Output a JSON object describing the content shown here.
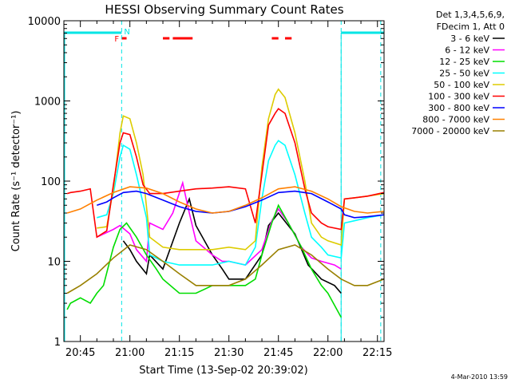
{
  "chart_data": {
    "type": "line",
    "title": "HESSI Observing Summary Count Rates",
    "xlabel": "Start Time (13-Sep-02 20:39:02)",
    "ylabel": "Count Rate (s⁻¹ detector⁻¹)",
    "y_scale": "log",
    "ylim": [
      1,
      10000
    ],
    "xlim_minutes": [
      40.0,
      137.0
    ],
    "x_ticks": [
      "20:45",
      "21:00",
      "21:15",
      "21:30",
      "21:45",
      "22:00",
      "22:15"
    ],
    "y_ticks": [
      "1",
      "10",
      "100",
      "1000",
      "10000"
    ],
    "legend_header": [
      "Det 1,3,4,5,6,9,",
      "FDecim 1, Att 0"
    ],
    "legend_placement": "right",
    "date_stamp": "4-Mar-2010 13:59",
    "flags": {
      "night_label": "N",
      "flare_label": "F",
      "night_color": "#00e5e5",
      "flare_color": "#ff0000",
      "night_intervals": [
        [
          40,
          57.5
        ],
        [
          124,
          137
        ]
      ],
      "flare_intervals": [
        [
          57.5,
          59
        ],
        [
          70,
          72
        ],
        [
          73,
          79
        ],
        [
          103,
          105
        ],
        [
          107,
          109
        ]
      ],
      "dashed_times": [
        57.5,
        124,
        136
      ]
    },
    "series": [
      {
        "name": "3 - 6 keV",
        "color": "#000000",
        "x": [
          41,
          45,
          50,
          55,
          58,
          60,
          62,
          65,
          66,
          70,
          75,
          78,
          80,
          85,
          88,
          90,
          95,
          100,
          102,
          105,
          110,
          114,
          118,
          122,
          124,
          126,
          130,
          137
        ],
        "y": [
          null,
          null,
          null,
          null,
          18,
          14,
          10,
          7,
          12,
          8,
          30,
          60,
          28,
          12,
          8,
          6,
          6,
          12,
          28,
          40,
          22,
          9,
          6,
          5,
          4,
          null,
          null,
          null
        ]
      },
      {
        "name": "6 - 12 keV",
        "color": "#ff00ff",
        "x": [
          41,
          45,
          50,
          55,
          57,
          60,
          62,
          65,
          66,
          70,
          73,
          76,
          78,
          80,
          85,
          88,
          90,
          95,
          100,
          103,
          105,
          108,
          112,
          115,
          118,
          122,
          124,
          126,
          130,
          137
        ],
        "y": [
          null,
          null,
          20,
          25,
          28,
          22,
          14,
          10,
          30,
          25,
          40,
          95,
          40,
          18,
          12,
          10,
          10,
          9,
          14,
          32,
          45,
          30,
          15,
          11,
          10,
          9,
          8,
          null,
          null,
          null
        ]
      },
      {
        "name": "12 - 25 keV",
        "color": "#00dd00",
        "x": [
          41,
          42,
          45,
          48,
          50,
          52,
          55,
          57,
          59,
          62,
          65,
          68,
          70,
          75,
          80,
          85,
          90,
          95,
          98,
          100,
          103,
          105,
          108,
          112,
          115,
          118,
          120,
          124
        ],
        "y": [
          2.5,
          3,
          3.5,
          3,
          4,
          5,
          15,
          25,
          30,
          20,
          12,
          8,
          6,
          4,
          4,
          5,
          5,
          5,
          6,
          12,
          30,
          50,
          30,
          15,
          8,
          5,
          4,
          2
        ]
      },
      {
        "name": "25 - 50 keV",
        "color": "#00ffff",
        "x": [
          41,
          45,
          50,
          53,
          55,
          57,
          58,
          60,
          62,
          65,
          66,
          70,
          75,
          80,
          85,
          90,
          95,
          98,
          100,
          102,
          104,
          105,
          107,
          110,
          113,
          115,
          118,
          120,
          124,
          125,
          128,
          132,
          137
        ],
        "y": [
          null,
          null,
          35,
          38,
          70,
          200,
          280,
          250,
          120,
          35,
          12,
          10,
          9,
          9,
          9,
          10,
          9,
          15,
          60,
          180,
          280,
          320,
          280,
          120,
          40,
          20,
          15,
          12,
          11,
          30,
          32,
          35,
          38
        ]
      },
      {
        "name": "50 - 100 keV",
        "color": "#ddcc00",
        "x": [
          41,
          45,
          50,
          53,
          55,
          57,
          58,
          60,
          62,
          64,
          66,
          70,
          75,
          80,
          85,
          90,
          95,
          98,
          100,
          102,
          104,
          105,
          107,
          110,
          113,
          115,
          118,
          120,
          124,
          125,
          128,
          132,
          137
        ],
        "y": [
          null,
          null,
          26,
          27,
          80,
          400,
          650,
          600,
          300,
          120,
          20,
          15,
          14,
          14,
          14,
          15,
          14,
          18,
          150,
          600,
          1200,
          1400,
          1100,
          400,
          100,
          30,
          20,
          18,
          16,
          60,
          62,
          65,
          70
        ]
      },
      {
        "name": "100 - 300 keV",
        "color": "#ff0000",
        "x": [
          41,
          42,
          45,
          48,
          50,
          53,
          55,
          57,
          58,
          60,
          62,
          64,
          66,
          70,
          75,
          80,
          85,
          90,
          95,
          98,
          100,
          102,
          104,
          105,
          107,
          110,
          113,
          115,
          118,
          120,
          124,
          125,
          128,
          132,
          137
        ],
        "y": [
          70,
          72,
          75,
          80,
          20,
          24,
          90,
          300,
          400,
          380,
          200,
          90,
          70,
          70,
          75,
          80,
          82,
          85,
          80,
          30,
          120,
          500,
          700,
          800,
          700,
          300,
          80,
          40,
          30,
          27,
          25,
          60,
          62,
          65,
          72
        ]
      },
      {
        "name": "300 - 800 keV",
        "color": "#0000ff",
        "x": [
          41,
          45,
          50,
          53,
          55,
          58,
          62,
          65,
          70,
          75,
          80,
          85,
          90,
          95,
          100,
          105,
          110,
          115,
          120,
          124,
          125,
          128,
          132,
          137
        ],
        "y": [
          null,
          null,
          50,
          55,
          62,
          72,
          75,
          70,
          58,
          48,
          42,
          40,
          42,
          48,
          58,
          72,
          75,
          70,
          55,
          45,
          38,
          35,
          36,
          38
        ]
      },
      {
        "name": "800 - 7000 keV",
        "color": "#ff8000",
        "x": [
          41,
          45,
          50,
          55,
          60,
          65,
          70,
          75,
          80,
          85,
          90,
          95,
          100,
          105,
          110,
          115,
          120,
          124,
          128,
          132,
          137
        ],
        "y": [
          40,
          45,
          58,
          72,
          85,
          82,
          70,
          55,
          45,
          40,
          42,
          50,
          62,
          80,
          85,
          75,
          60,
          48,
          42,
          40,
          42
        ]
      },
      {
        "name": "7000 - 20000 keV",
        "color": "#998000",
        "x": [
          41,
          45,
          50,
          55,
          60,
          65,
          70,
          75,
          80,
          85,
          90,
          95,
          100,
          105,
          110,
          115,
          120,
          124,
          128,
          132,
          137
        ],
        "y": [
          4,
          5,
          7,
          11,
          16,
          14,
          10,
          7,
          5,
          5,
          5,
          6,
          9,
          14,
          16,
          12,
          8,
          6,
          5,
          5,
          6
        ]
      }
    ]
  }
}
